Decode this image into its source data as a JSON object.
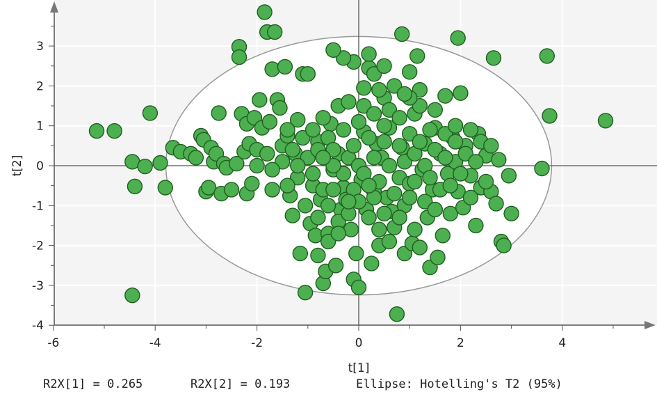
{
  "chart_data": {
    "type": "scatter",
    "title": "",
    "xlabel": "t[1]",
    "ylabel": "t[2]",
    "xlim": [
      -6.1,
      5.9
    ],
    "ylim": [
      -4.0,
      4.0
    ],
    "x_ticks": [
      -6,
      -4,
      -2,
      0,
      2,
      4
    ],
    "y_ticks": [
      -4,
      -3,
      -2,
      -1,
      0,
      1,
      2,
      3
    ],
    "grid": true,
    "marker_color": "#4caf50",
    "marker_edge": "#1f5e1f",
    "ellipse": {
      "center": [
        0,
        0
      ],
      "semi_axis_x": 3.79,
      "semi_axis_y": 3.24
    },
    "points": [
      [
        -5.15,
        0.87
      ],
      [
        -4.8,
        0.87
      ],
      [
        -4.45,
        0.1
      ],
      [
        -4.4,
        -0.52
      ],
      [
        -4.45,
        -3.25
      ],
      [
        -4.2,
        -0.02
      ],
      [
        -4.1,
        1.32
      ],
      [
        -3.9,
        0.07
      ],
      [
        -3.8,
        -0.55
      ],
      [
        -3.65,
        0.45
      ],
      [
        -3.5,
        0.35
      ],
      [
        -3.3,
        0.3
      ],
      [
        -3.2,
        0.2
      ],
      [
        -3.1,
        0.75
      ],
      [
        -3.05,
        0.65
      ],
      [
        -3.0,
        -0.65
      ],
      [
        -2.95,
        -0.55
      ],
      [
        -2.9,
        0.45
      ],
      [
        -2.85,
        0.1
      ],
      [
        -2.8,
        0.3
      ],
      [
        -2.75,
        1.32
      ],
      [
        -2.7,
        -0.7
      ],
      [
        -2.65,
        0.05
      ],
      [
        -2.6,
        -0.05
      ],
      [
        -2.5,
        -0.6
      ],
      [
        -2.4,
        0.05
      ],
      [
        -2.35,
        2.98
      ],
      [
        -2.35,
        2.72
      ],
      [
        -2.3,
        1.3
      ],
      [
        -2.25,
        0.35
      ],
      [
        -2.2,
        -0.7
      ],
      [
        -2.2,
        1.05
      ],
      [
        -2.15,
        0.55
      ],
      [
        -2.1,
        -0.45
      ],
      [
        -2.05,
        1.2
      ],
      [
        -2.0,
        0.4
      ],
      [
        -1.95,
        1.65
      ],
      [
        -1.9,
        0.95
      ],
      [
        -1.85,
        3.85
      ],
      [
        -1.8,
        3.35
      ],
      [
        -1.75,
        1.1
      ],
      [
        -1.7,
        -0.6
      ],
      [
        -1.7,
        2.42
      ],
      [
        -1.65,
        3.35
      ],
      [
        -1.6,
        1.65
      ],
      [
        -1.55,
        1.45
      ],
      [
        -1.5,
        0.5
      ],
      [
        -1.45,
        2.48
      ],
      [
        -1.4,
        0.75
      ],
      [
        -1.35,
        -0.75
      ],
      [
        -1.3,
        -1.25
      ],
      [
        -1.25,
        0.3
      ],
      [
        -1.2,
        1.15
      ],
      [
        -1.15,
        -2.2
      ],
      [
        -1.1,
        2.3
      ],
      [
        -1.05,
        -1.0
      ],
      [
        -1.05,
        -3.18
      ],
      [
        -1.0,
        2.3
      ],
      [
        -0.95,
        -1.45
      ],
      [
        -0.9,
        -0.5
      ],
      [
        -0.85,
        -1.75
      ],
      [
        -0.8,
        -2.25
      ],
      [
        -0.8,
        0.6
      ],
      [
        -0.75,
        -0.85
      ],
      [
        -0.7,
        -2.95
      ],
      [
        -0.65,
        -2.65
      ],
      [
        -0.6,
        -1.7
      ],
      [
        -0.55,
        1.05
      ],
      [
        -0.5,
        -0.1
      ],
      [
        -0.45,
        -2.5
      ],
      [
        -0.4,
        0.3
      ],
      [
        -0.35,
        -1.1
      ],
      [
        -0.3,
        -0.55
      ],
      [
        -0.25,
        -0.85
      ],
      [
        -0.2,
        0.2
      ],
      [
        -0.15,
        -1.6
      ],
      [
        -0.1,
        -2.85
      ],
      [
        -0.05,
        -2.2
      ],
      [
        0.0,
        -3.05
      ],
      [
        0.05,
        -0.35
      ],
      [
        0.1,
        0.85
      ],
      [
        0.1,
        1.95
      ],
      [
        0.15,
        -1.1
      ],
      [
        0.2,
        2.45
      ],
      [
        0.25,
        -2.45
      ],
      [
        0.3,
        -0.65
      ],
      [
        0.35,
        0.55
      ],
      [
        0.4,
        -1.6
      ],
      [
        0.45,
        0.2
      ],
      [
        0.5,
        1.7
      ],
      [
        0.55,
        -0.8
      ],
      [
        0.6,
        0.95
      ],
      [
        0.65,
        -1.15
      ],
      [
        0.7,
        -1.55
      ],
      [
        0.75,
        -3.72
      ],
      [
        0.8,
        -0.3
      ],
      [
        0.85,
        0.45
      ],
      [
        0.85,
        3.3
      ],
      [
        0.9,
        -2.2
      ],
      [
        1.0,
        -0.45
      ],
      [
        1.0,
        2.35
      ],
      [
        1.05,
        -1.95
      ],
      [
        1.1,
        1.3
      ],
      [
        1.15,
        2.75
      ],
      [
        1.2,
        -2.05
      ],
      [
        1.25,
        -0.1
      ],
      [
        1.3,
        0.55
      ],
      [
        1.35,
        -1.3
      ],
      [
        1.4,
        -2.55
      ],
      [
        1.45,
        -0.6
      ],
      [
        1.5,
        0.95
      ],
      [
        1.55,
        -2.3
      ],
      [
        1.6,
        0.3
      ],
      [
        1.65,
        -1.75
      ],
      [
        1.7,
        1.75
      ],
      [
        1.75,
        -0.2
      ],
      [
        1.8,
        -1.2
      ],
      [
        1.85,
        0.7
      ],
      [
        1.9,
        0.1
      ],
      [
        1.95,
        -0.65
      ],
      [
        1.95,
        3.2
      ],
      [
        2.0,
        1.82
      ],
      [
        2.05,
        -1.05
      ],
      [
        2.1,
        0.5
      ],
      [
        2.2,
        -0.25
      ],
      [
        2.3,
        -1.5
      ],
      [
        2.35,
        0.8
      ],
      [
        2.4,
        -0.55
      ],
      [
        2.5,
        0.25
      ],
      [
        2.6,
        -0.65
      ],
      [
        2.65,
        2.7
      ],
      [
        2.7,
        -0.95
      ],
      [
        2.75,
        0.15
      ],
      [
        2.8,
        -1.9
      ],
      [
        2.85,
        -2.0
      ],
      [
        2.95,
        -0.25
      ],
      [
        3.0,
        -1.2
      ],
      [
        3.6,
        -0.07
      ],
      [
        3.7,
        2.75
      ],
      [
        3.75,
        1.25
      ],
      [
        4.85,
        1.13
      ],
      [
        -1.5,
        0.1
      ],
      [
        -1.3,
        0.4
      ],
      [
        -1.2,
        -0.3
      ],
      [
        -1.1,
        0.7
      ],
      [
        -1.0,
        0.2
      ],
      [
        -0.9,
        0.9
      ],
      [
        -0.9,
        -0.2
      ],
      [
        -0.8,
        0.4
      ],
      [
        -0.7,
        1.2
      ],
      [
        -0.7,
        -0.6
      ],
      [
        -0.6,
        0.7
      ],
      [
        -0.6,
        -1.0
      ],
      [
        -0.5,
        0.4
      ],
      [
        -0.5,
        -0.6
      ],
      [
        -0.4,
        1.5
      ],
      [
        -0.4,
        -1.4
      ],
      [
        -0.3,
        0.9
      ],
      [
        -0.3,
        -0.2
      ],
      [
        -0.2,
        1.6
      ],
      [
        -0.2,
        -1.2
      ],
      [
        -0.1,
        0.5
      ],
      [
        -0.1,
        -0.6
      ],
      [
        0.0,
        1.1
      ],
      [
        0.0,
        0.0
      ],
      [
        0.0,
        -0.9
      ],
      [
        0.1,
        1.5
      ],
      [
        0.1,
        -0.2
      ],
      [
        0.2,
        0.7
      ],
      [
        0.2,
        -1.3
      ],
      [
        0.3,
        1.3
      ],
      [
        0.3,
        0.2
      ],
      [
        0.3,
        -0.8
      ],
      [
        0.4,
        1.9
      ],
      [
        0.4,
        -0.4
      ],
      [
        0.5,
        0.6
      ],
      [
        0.5,
        -1.2
      ],
      [
        0.6,
        1.4
      ],
      [
        0.6,
        0.0
      ],
      [
        0.7,
        -0.7
      ],
      [
        0.8,
        1.2
      ],
      [
        0.8,
        0.5
      ],
      [
        0.9,
        -1.0
      ],
      [
        0.9,
        0.1
      ],
      [
        1.0,
        0.8
      ],
      [
        1.0,
        -0.8
      ],
      [
        1.1,
        0.3
      ],
      [
        1.1,
        -0.4
      ],
      [
        1.2,
        1.5
      ],
      [
        1.2,
        0.6
      ],
      [
        1.3,
        -0.9
      ],
      [
        1.3,
        0.0
      ],
      [
        1.4,
        0.9
      ],
      [
        1.4,
        -0.3
      ],
      [
        1.5,
        0.4
      ],
      [
        1.5,
        -1.1
      ],
      [
        1.6,
        -0.6
      ],
      [
        1.7,
        0.8
      ],
      [
        1.7,
        0.2
      ],
      [
        1.8,
        -0.5
      ],
      [
        1.9,
        0.6
      ],
      [
        2.0,
        -0.2
      ],
      [
        2.1,
        0.3
      ],
      [
        2.2,
        -0.8
      ],
      [
        2.3,
        0.1
      ],
      [
        2.4,
        0.6
      ],
      [
        2.5,
        -0.4
      ],
      [
        -2.0,
        0.0
      ],
      [
        -1.8,
        0.3
      ],
      [
        -1.7,
        -0.1
      ],
      [
        -1.4,
        0.9
      ],
      [
        -1.4,
        -0.5
      ],
      [
        -1.2,
        0.0
      ],
      [
        -0.8,
        -1.3
      ],
      [
        -0.6,
        -1.9
      ],
      [
        -0.4,
        -1.7
      ],
      [
        -0.2,
        -0.9
      ],
      [
        0.2,
        -0.5
      ],
      [
        0.4,
        -2.0
      ],
      [
        0.6,
        -1.9
      ],
      [
        0.8,
        -1.3
      ],
      [
        1.1,
        -1.6
      ],
      [
        1.2,
        1.9
      ],
      [
        0.7,
        2.0
      ],
      [
        0.3,
        2.3
      ],
      [
        -0.1,
        2.6
      ],
      [
        -0.3,
        2.7
      ],
      [
        -0.5,
        2.9
      ],
      [
        0.2,
        2.8
      ],
      [
        0.5,
        2.5
      ],
      [
        1.0,
        1.7
      ],
      [
        1.5,
        1.4
      ],
      [
        0.9,
        1.8
      ],
      [
        0.5,
        1.0
      ],
      [
        -0.5,
        0.0
      ],
      [
        -0.7,
        0.2
      ],
      [
        1.9,
        1.0
      ],
      [
        2.2,
        0.9
      ],
      [
        2.6,
        0.5
      ]
    ]
  },
  "footer": {
    "r2x1": "R2X[1] = 0.265",
    "r2x2": "R2X[2] = 0.193",
    "ellipse": "Ellipse: Hotelling's T2 (95%)"
  }
}
